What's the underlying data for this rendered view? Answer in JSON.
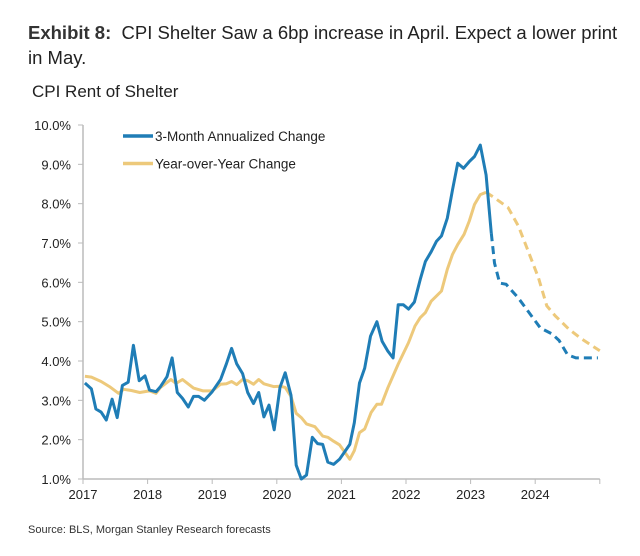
{
  "header": {
    "exhibit": "Exhibit 8:",
    "title": "CPI Shelter Saw a 6bp increase in April. Expect a lower print in May."
  },
  "source": "Source: BLS, Morgan Stanley Research forecasts",
  "chart_data": {
    "type": "line",
    "title": "CPI Rent of Shelter",
    "xlabel": "",
    "ylabel": "",
    "xlim": [
      2017,
      2025
    ],
    "ylim": [
      1.0,
      10.0
    ],
    "x_ticks": [
      "2017",
      "2018",
      "2019",
      "2020",
      "2021",
      "2022",
      "2023",
      "2024"
    ],
    "y_ticks": [
      "1.0%",
      "2.0%",
      "3.0%",
      "4.0%",
      "5.0%",
      "6.0%",
      "7.0%",
      "8.0%",
      "9.0%",
      "10.0%"
    ],
    "grid": false,
    "legend": "top-left",
    "series": [
      {
        "name": "3-Month Annualized Change",
        "color": "#1f7db6",
        "actual": [
          [
            2017.03,
            3.44
          ],
          [
            2017.13,
            3.29
          ],
          [
            2017.2,
            2.78
          ],
          [
            2017.28,
            2.7
          ],
          [
            2017.36,
            2.5
          ],
          [
            2017.45,
            3.03
          ],
          [
            2017.53,
            2.56
          ],
          [
            2017.61,
            3.38
          ],
          [
            2017.7,
            3.46
          ],
          [
            2017.78,
            4.4
          ],
          [
            2017.87,
            3.5
          ],
          [
            2017.96,
            3.62
          ],
          [
            2018.03,
            3.26
          ],
          [
            2018.13,
            3.22
          ],
          [
            2018.2,
            3.35
          ],
          [
            2018.3,
            3.6
          ],
          [
            2018.38,
            4.08
          ],
          [
            2018.46,
            3.2
          ],
          [
            2018.54,
            3.05
          ],
          [
            2018.63,
            2.83
          ],
          [
            2018.71,
            3.1
          ],
          [
            2018.79,
            3.1
          ],
          [
            2018.88,
            3.0
          ],
          [
            2019.0,
            3.22
          ],
          [
            2019.13,
            3.53
          ],
          [
            2019.22,
            3.93
          ],
          [
            2019.3,
            4.32
          ],
          [
            2019.38,
            3.93
          ],
          [
            2019.47,
            3.68
          ],
          [
            2019.55,
            3.2
          ],
          [
            2019.64,
            2.92
          ],
          [
            2019.72,
            3.2
          ],
          [
            2019.8,
            2.58
          ],
          [
            2019.88,
            2.88
          ],
          [
            2019.96,
            2.25
          ],
          [
            2020.05,
            3.33
          ],
          [
            2020.13,
            3.7
          ],
          [
            2020.22,
            3.13
          ],
          [
            2020.3,
            1.35
          ],
          [
            2020.38,
            1.0
          ],
          [
            2020.46,
            1.1
          ],
          [
            2020.55,
            2.06
          ],
          [
            2020.63,
            1.9
          ],
          [
            2020.71,
            1.88
          ],
          [
            2020.79,
            1.43
          ],
          [
            2020.88,
            1.37
          ],
          [
            2020.97,
            1.5
          ],
          [
            2021.13,
            1.88
          ],
          [
            2021.2,
            2.43
          ],
          [
            2021.28,
            3.44
          ],
          [
            2021.36,
            3.82
          ],
          [
            2021.45,
            4.63
          ],
          [
            2021.55,
            5.0
          ],
          [
            2021.63,
            4.5
          ],
          [
            2021.72,
            4.25
          ],
          [
            2021.8,
            4.08
          ],
          [
            2021.88,
            5.43
          ],
          [
            2021.96,
            5.43
          ],
          [
            2022.04,
            5.32
          ],
          [
            2022.13,
            5.5
          ],
          [
            2022.22,
            6.07
          ],
          [
            2022.3,
            6.53
          ],
          [
            2022.39,
            6.78
          ],
          [
            2022.47,
            7.04
          ],
          [
            2022.55,
            7.18
          ],
          [
            2022.64,
            7.63
          ],
          [
            2022.72,
            8.35
          ],
          [
            2022.8,
            9.03
          ],
          [
            2022.89,
            8.9
          ],
          [
            2022.98,
            9.07
          ],
          [
            2023.06,
            9.2
          ],
          [
            2023.15,
            9.49
          ],
          [
            2023.24,
            8.73
          ],
          [
            2023.32,
            7.25
          ]
        ],
        "forecast": [
          [
            2023.32,
            7.25
          ],
          [
            2023.37,
            6.49
          ],
          [
            2023.45,
            5.98
          ],
          [
            2023.55,
            5.95
          ],
          [
            2023.74,
            5.6
          ],
          [
            2023.95,
            5.13
          ],
          [
            2024.08,
            4.84
          ],
          [
            2024.26,
            4.69
          ],
          [
            2024.37,
            4.52
          ],
          [
            2024.5,
            4.16
          ],
          [
            2024.63,
            4.08
          ],
          [
            2024.97,
            4.08
          ]
        ]
      },
      {
        "name": "Year-over-Year Change",
        "color": "#edc97b",
        "actual": [
          [
            2017.03,
            3.61
          ],
          [
            2017.13,
            3.59
          ],
          [
            2017.28,
            3.48
          ],
          [
            2017.41,
            3.35
          ],
          [
            2017.55,
            3.18
          ],
          [
            2017.63,
            3.28
          ],
          [
            2017.75,
            3.25
          ],
          [
            2017.88,
            3.2
          ],
          [
            2018.03,
            3.24
          ],
          [
            2018.13,
            3.18
          ],
          [
            2018.2,
            3.33
          ],
          [
            2018.36,
            3.53
          ],
          [
            2018.44,
            3.43
          ],
          [
            2018.54,
            3.53
          ],
          [
            2018.71,
            3.31
          ],
          [
            2018.86,
            3.24
          ],
          [
            2019.0,
            3.24
          ],
          [
            2019.13,
            3.41
          ],
          [
            2019.22,
            3.42
          ],
          [
            2019.3,
            3.48
          ],
          [
            2019.38,
            3.4
          ],
          [
            2019.47,
            3.53
          ],
          [
            2019.55,
            3.5
          ],
          [
            2019.64,
            3.41
          ],
          [
            2019.72,
            3.53
          ],
          [
            2019.8,
            3.42
          ],
          [
            2019.95,
            3.35
          ],
          [
            2020.05,
            3.36
          ],
          [
            2020.13,
            3.33
          ],
          [
            2020.22,
            3.1
          ],
          [
            2020.3,
            2.67
          ],
          [
            2020.38,
            2.56
          ],
          [
            2020.46,
            2.4
          ],
          [
            2020.59,
            2.33
          ],
          [
            2020.71,
            2.09
          ],
          [
            2020.79,
            2.06
          ],
          [
            2020.88,
            1.96
          ],
          [
            2020.97,
            1.87
          ],
          [
            2021.13,
            1.5
          ],
          [
            2021.2,
            1.72
          ],
          [
            2021.28,
            2.18
          ],
          [
            2021.36,
            2.27
          ],
          [
            2021.46,
            2.69
          ],
          [
            2021.55,
            2.9
          ],
          [
            2021.62,
            2.9
          ],
          [
            2021.72,
            3.32
          ],
          [
            2021.88,
            3.92
          ],
          [
            2022.04,
            4.47
          ],
          [
            2022.14,
            4.89
          ],
          [
            2022.22,
            5.1
          ],
          [
            2022.3,
            5.23
          ],
          [
            2022.39,
            5.52
          ],
          [
            2022.47,
            5.65
          ],
          [
            2022.55,
            5.78
          ],
          [
            2022.64,
            6.33
          ],
          [
            2022.72,
            6.71
          ],
          [
            2022.8,
            6.96
          ],
          [
            2022.9,
            7.22
          ],
          [
            2022.98,
            7.56
          ],
          [
            2023.06,
            7.98
          ],
          [
            2023.15,
            8.23
          ],
          [
            2023.24,
            8.29
          ]
        ],
        "forecast": [
          [
            2023.24,
            8.29
          ],
          [
            2023.37,
            8.15
          ],
          [
            2023.58,
            7.9
          ],
          [
            2023.74,
            7.43
          ],
          [
            2023.89,
            6.8
          ],
          [
            2024.05,
            6.12
          ],
          [
            2024.18,
            5.4
          ],
          [
            2024.31,
            5.15
          ],
          [
            2024.52,
            4.81
          ],
          [
            2024.72,
            4.56
          ],
          [
            2025.0,
            4.26
          ]
        ]
      }
    ]
  }
}
